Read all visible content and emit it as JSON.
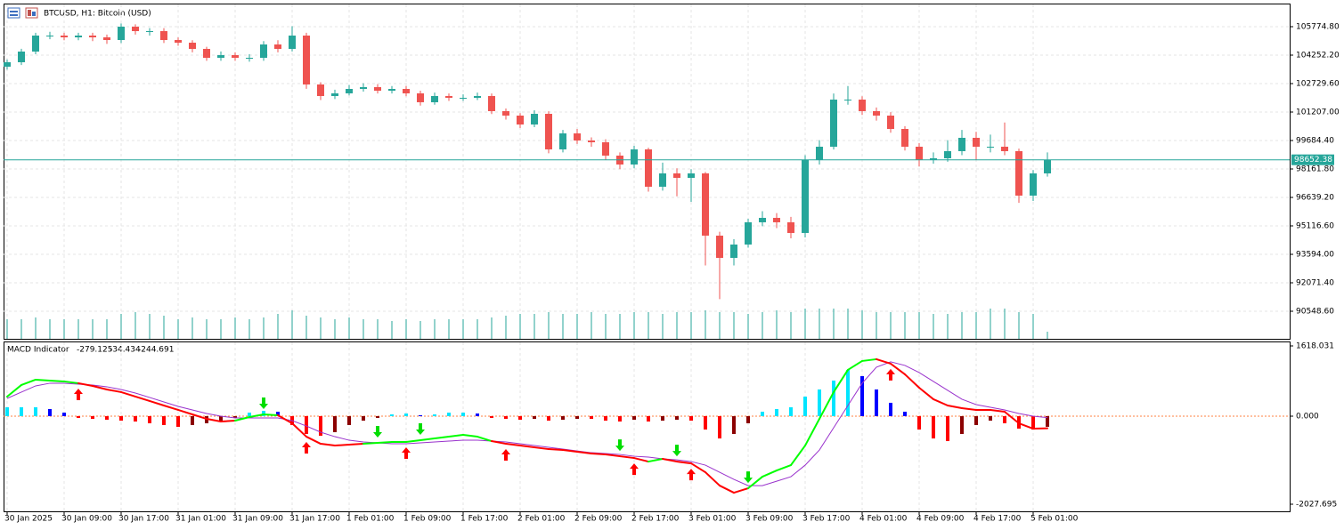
{
  "chart_data": [
    {
      "type": "candlestick",
      "title": "BTCUSD, H1:  Bitcoin (USD)",
      "categories": [
        "30 Jan 2025",
        null,
        null,
        null,
        "30 Jan 09:00",
        null,
        null,
        null,
        "30 Jan 17:00",
        null,
        null,
        null,
        "31 Jan 01:00",
        null,
        null,
        null,
        "31 Jan 09:00",
        null,
        null,
        null,
        "31 Jan 17:00",
        null,
        null,
        null,
        "1 Feb 01:00",
        null,
        null,
        null,
        "1 Feb 09:00",
        null,
        null,
        null,
        "1 Feb 17:00",
        null,
        null,
        null,
        "2 Feb 01:00",
        null,
        null,
        null,
        "2 Feb 09:00",
        null,
        null,
        null,
        "2 Feb 17:00",
        null,
        null,
        null,
        "3 Feb 01:00",
        null,
        null,
        null,
        "3 Feb 09:00",
        null,
        null,
        null,
        "3 Feb 17:00",
        null,
        null,
        null,
        "4 Feb 01:00",
        null,
        null,
        null,
        "4 Feb 09:00",
        null,
        null,
        null,
        "4 Feb 17:00",
        null,
        null,
        null,
        "5 Feb 01:00",
        null
      ],
      "open": [
        103634,
        103872,
        104443,
        105299,
        105299,
        105204,
        105299,
        105204,
        105061,
        105775,
        105537,
        105537,
        105061,
        104918,
        104586,
        104110,
        104252,
        104110,
        104110,
        104823,
        104586,
        105299,
        102682,
        102064,
        102207,
        102444,
        102540,
        102349,
        102444,
        102207,
        101731,
        102064,
        101969,
        101969,
        102064,
        101255,
        101017,
        100541,
        101112,
        99209,
        100065,
        99685,
        99590,
        98876,
        98400,
        99209,
        97211,
        97924,
        97686,
        97924,
        94594,
        93404,
        94118,
        95308,
        95545,
        95308,
        94737,
        98638,
        99352,
        101873,
        101873,
        101255,
        101017,
        100303,
        99352,
        98638,
        98733,
        99114,
        99828,
        99352,
        99352,
        99114,
        96735,
        97924
      ],
      "high": [
        104020,
        104590,
        105450,
        105500,
        105450,
        105450,
        105450,
        105350,
        105950,
        105900,
        105700,
        105700,
        105200,
        105050,
        104700,
        104450,
        104400,
        104300,
        105000,
        105050,
        105800,
        105450,
        102800,
        102400,
        102650,
        102750,
        102700,
        102600,
        102600,
        102350,
        102250,
        102200,
        102150,
        102250,
        102200,
        101400,
        101150,
        101300,
        101250,
        100250,
        100300,
        99850,
        99750,
        99050,
        99400,
        99300,
        98500,
        98200,
        98150,
        98000,
        94800,
        94400,
        95500,
        95900,
        95800,
        95600,
        98900,
        99700,
        102200,
        102600,
        102050,
        101450,
        101200,
        100450,
        99550,
        99050,
        99700,
        100250,
        100150,
        100000,
        100650,
        99250,
        98100,
        99050
      ],
      "low": [
        103480,
        103720,
        104300,
        105100,
        105050,
        105050,
        105000,
        104850,
        104900,
        105350,
        105300,
        104900,
        104750,
        104400,
        103950,
        103950,
        103950,
        103900,
        103950,
        104400,
        104450,
        102450,
        101850,
        101900,
        102100,
        102300,
        102200,
        102200,
        102050,
        101550,
        101600,
        101800,
        101800,
        101850,
        101100,
        100800,
        100350,
        100400,
        99000,
        99050,
        99500,
        99350,
        98650,
        98150,
        98200,
        96950,
        97000,
        96700,
        96400,
        93000,
        91200,
        93000,
        93950,
        95100,
        95000,
        94450,
        94500,
        98400,
        99200,
        101600,
        101050,
        100750,
        100100,
        99150,
        98300,
        98450,
        98550,
        98900,
        98650,
        99050,
        98900,
        96350,
        96450,
        97750
      ],
      "close": [
        103872,
        104443,
        105299,
        105299,
        105204,
        105299,
        105204,
        105061,
        105775,
        105537,
        105537,
        105061,
        104918,
        104586,
        104110,
        104252,
        104110,
        104110,
        104823,
        104586,
        105299,
        102682,
        102064,
        102207,
        102444,
        102540,
        102349,
        102444,
        102207,
        101731,
        102064,
        101969,
        101969,
        102064,
        101255,
        101017,
        100541,
        101112,
        99209,
        100065,
        99685,
        99590,
        98876,
        98400,
        99209,
        97211,
        97924,
        97686,
        97924,
        94594,
        93404,
        94118,
        95308,
        95545,
        95308,
        94737,
        98638,
        99352,
        101873,
        101873,
        101255,
        101017,
        100303,
        99352,
        98638,
        98733,
        99114,
        99828,
        99352,
        99352,
        99114,
        96735,
        97924,
        98652.38
      ],
      "volume": [
        22,
        22,
        24,
        22,
        22,
        22,
        22,
        22,
        28,
        30,
        28,
        26,
        22,
        24,
        22,
        22,
        24,
        22,
        24,
        28,
        32,
        26,
        24,
        22,
        24,
        22,
        22,
        20,
        22,
        20,
        22,
        22,
        22,
        22,
        24,
        26,
        28,
        28,
        30,
        28,
        28,
        30,
        28,
        28,
        30,
        30,
        28,
        30,
        30,
        32,
        30,
        30,
        28,
        30,
        32,
        30,
        34,
        34,
        34,
        34,
        32,
        30,
        30,
        30,
        30,
        28,
        28,
        30,
        30,
        34,
        34,
        30,
        28,
        8
      ],
      "last_price": 98652.38,
      "ylim": [
        89026.2,
        106964.3
      ],
      "yticks": [
        {
          "value": 105774.8,
          "label": "105774.80"
        },
        {
          "value": 104252.2,
          "label": "104252.20"
        },
        {
          "value": 102729.6,
          "label": "102729.60"
        },
        {
          "value": 101207,
          "label": "101207.00"
        },
        {
          "value": 99684.4,
          "label": "99684.40"
        },
        {
          "value": 98161.8,
          "label": "98161.80"
        },
        {
          "value": 96639.2,
          "label": "96639.20"
        },
        {
          "value": 95116.6,
          "label": "95116.60"
        },
        {
          "value": 93594,
          "label": "93594.00"
        },
        {
          "value": 92071.4,
          "label": "92071.40"
        },
        {
          "value": 90548.6,
          "label": "90548.60"
        }
      ],
      "up_color": "#26a69a",
      "down_color": "#ef5350",
      "volume_color": "#26a69a",
      "grid": true
    },
    {
      "type": "macd",
      "title": "MACD Indicator",
      "histogram": [
        205,
        205,
        205,
        164,
        82,
        -41,
        -62,
        -82,
        -103,
        -123,
        -164,
        -205,
        -246,
        -205,
        -164,
        -123,
        -41,
        82,
        123,
        103,
        -205,
        -410,
        -451,
        -369,
        -205,
        -103,
        -41,
        41,
        62,
        21,
        41,
        82,
        82,
        62,
        -41,
        -62,
        -82,
        -62,
        -103,
        -82,
        -62,
        -62,
        -103,
        -123,
        -82,
        -123,
        -103,
        -82,
        -103,
        -308,
        -513,
        -410,
        -164,
        103,
        164,
        205,
        451,
        615,
        820,
        1066,
        923,
        615,
        308,
        103,
        -308,
        -513,
        -574,
        -410,
        -205,
        -103,
        -164,
        -287,
        -308,
        -244.691
      ],
      "macd": [
        451,
        718,
        840,
        820,
        800,
        759,
        697,
        615,
        554,
        451,
        349,
        246,
        144,
        41,
        -62,
        -123,
        -103,
        -21,
        41,
        21,
        -164,
        -472,
        -636,
        -677,
        -656,
        -636,
        -615,
        -595,
        -595,
        -554,
        -513,
        -472,
        -431,
        -472,
        -574,
        -636,
        -677,
        -718,
        -759,
        -779,
        -820,
        -861,
        -882,
        -923,
        -964,
        -1046,
        -984,
        -1046,
        -1087,
        -1292,
        -1599,
        -1763,
        -1661,
        -1394,
        -1251,
        -1128,
        -677,
        -62,
        554,
        1066,
        1271,
        1312,
        1210,
        964,
        656,
        390,
        246,
        185,
        144,
        144,
        103,
        -164,
        -287,
        -279.125
      ],
      "signal": [
        410,
        554,
        697,
        759,
        759,
        738,
        718,
        677,
        615,
        533,
        431,
        328,
        226,
        144,
        62,
        0,
        -41,
        -41,
        -41,
        -41,
        -103,
        -226,
        -369,
        -472,
        -554,
        -595,
        -615,
        -636,
        -636,
        -615,
        -595,
        -574,
        -554,
        -554,
        -574,
        -595,
        -636,
        -677,
        -718,
        -759,
        -800,
        -841,
        -861,
        -882,
        -923,
        -943,
        -984,
        -1005,
        -1046,
        -1128,
        -1292,
        -1456,
        -1599,
        -1599,
        -1497,
        -1394,
        -1128,
        -779,
        -267,
        246,
        759,
        1128,
        1251,
        1169,
        1005,
        800,
        595,
        390,
        267,
        205,
        144,
        62,
        0,
        -34.434
      ],
      "up_arrows": [
        5,
        21,
        28,
        35,
        44,
        48,
        62
      ],
      "down_arrows": [
        18,
        26,
        29,
        43,
        47,
        52
      ],
      "ylim": [
        -2027.695,
        1618.031
      ],
      "yticks": [
        {
          "value": -2027.695,
          "label": "-2027.695"
        },
        {
          "value": 0,
          "label": "0.000"
        },
        {
          "value": 1618.031,
          "label": "1618.031"
        }
      ],
      "hist_colors": [
        "#00e5ff",
        "#0000ff",
        "#ff0000",
        "#8b0000"
      ],
      "line_colors": [
        "#00ff00",
        "#ff0000"
      ],
      "signal_color": "#9932cc",
      "zero_color": "#ff8040",
      "up_arrow_color": "#ff0000",
      "down_arrow_color": "#00dd00"
    }
  ]
}
